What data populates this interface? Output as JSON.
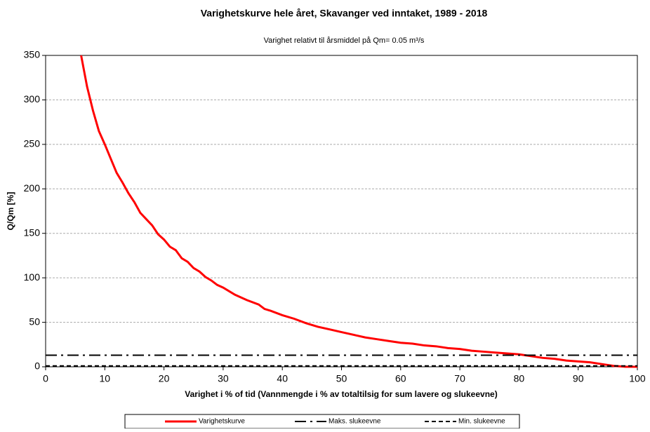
{
  "chart_data": {
    "type": "line",
    "title": "Varighetskurve hele året, Skavanger ved inntaket, 1989 - 2018",
    "subtitle": "Varighet relativt til årsmiddel på Qm= 0.05 m³/s",
    "x_label": "Varighet i % of tid (Vannmengde i % av totaltilsig  for sum lavere og slukeevne)",
    "y_label": "Q/Qm [%]",
    "xlim": [
      0,
      100
    ],
    "xticks": [
      0,
      10,
      20,
      30,
      40,
      50,
      60,
      70,
      80,
      90,
      100
    ],
    "ylim": [
      0,
      350
    ],
    "yticks": [
      0,
      50,
      100,
      150,
      200,
      250,
      300,
      350
    ],
    "grid": true,
    "legend": "bottom",
    "series": [
      {
        "name": "Varighetskurve",
        "color": "#ff0000",
        "dash": "solid",
        "x": [
          6,
          7,
          8,
          9,
          10,
          11,
          12,
          13,
          14,
          15,
          16,
          17,
          18,
          19,
          20,
          21,
          22,
          23,
          24,
          25,
          26,
          27,
          28,
          29,
          30,
          32,
          34,
          36,
          37,
          38,
          40,
          42,
          44,
          46,
          48,
          50,
          52,
          54,
          56,
          58,
          60,
          62,
          64,
          66,
          68,
          70,
          72,
          74,
          76,
          78,
          80,
          82,
          84,
          86,
          88,
          90,
          92,
          94,
          96,
          98,
          100
        ],
        "values": [
          350,
          315,
          288,
          265,
          250,
          234,
          218,
          207,
          195,
          185,
          173,
          166,
          159,
          149,
          143,
          135,
          131,
          122,
          118,
          111,
          107,
          101,
          97,
          92,
          89,
          81,
          75,
          70,
          65,
          63,
          58,
          54,
          49,
          45,
          42,
          39,
          36,
          33,
          31,
          29,
          27,
          26,
          24,
          23,
          21,
          20,
          18,
          17,
          16,
          15,
          14,
          12,
          10,
          9,
          7,
          6,
          5,
          3,
          1,
          0,
          0
        ]
      },
      {
        "name": "Maks. slukeevne",
        "color": "#000000",
        "dash": "dashdot",
        "x": [
          0,
          100
        ],
        "values": [
          13,
          13
        ]
      },
      {
        "name": "Min. slukeevne",
        "color": "#000000",
        "dash": "dashed",
        "x": [
          0,
          100
        ],
        "values": [
          1,
          1
        ]
      }
    ]
  }
}
